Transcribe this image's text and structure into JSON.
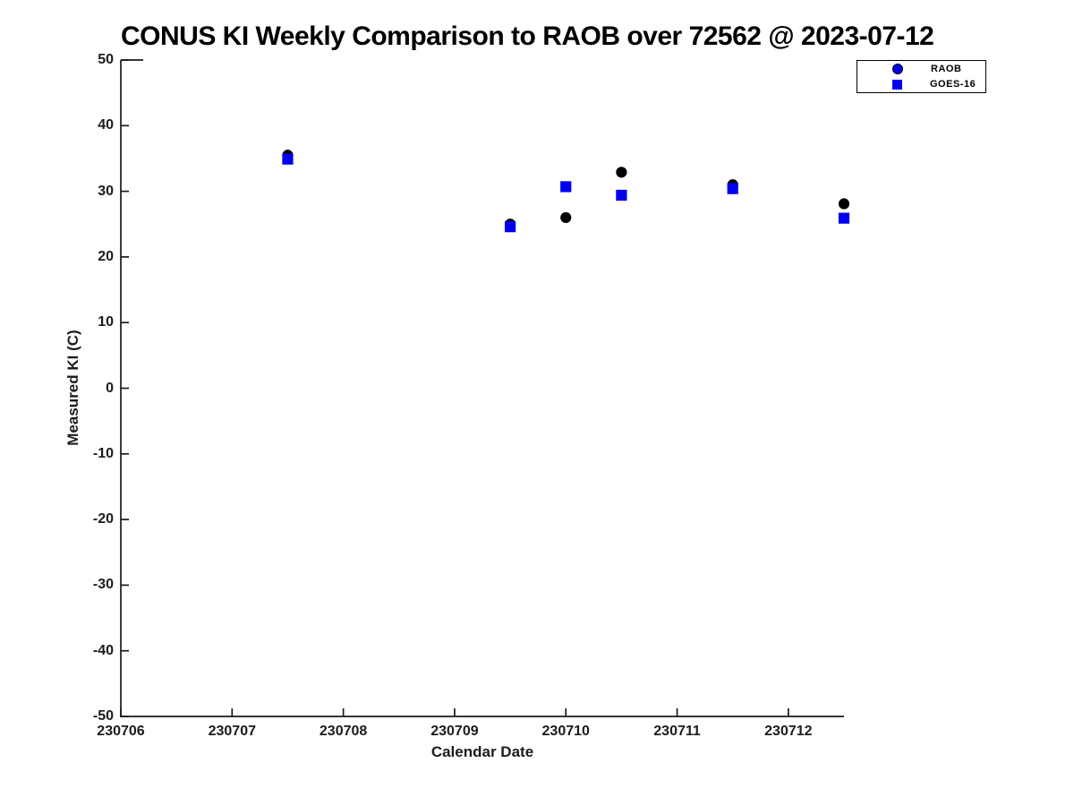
{
  "title": "CONUS KI Weekly Comparison to RAOB over 72562 @ 2023-07-12",
  "colors": {
    "series_blue": "#0000ee",
    "series_black": "#000000",
    "axis": "#1a1a1a",
    "tick_text": "#1c1c1c",
    "background": "#ffffff"
  },
  "legend": {
    "items": [
      {
        "label": "RAOB",
        "marker": "circle"
      },
      {
        "label": "GOES-16",
        "marker": "square"
      }
    ]
  },
  "chart_data": {
    "type": "scatter",
    "title": "CONUS KI Weekly Comparison to RAOB over 72562 @ 2023-07-12",
    "xlabel": "Calendar Date",
    "ylabel": "Measured KI (C)",
    "x_range": [
      230706,
      230712.5
    ],
    "y_range": [
      -50,
      50
    ],
    "x_tick_labels": [
      "230706",
      "230707",
      "230708",
      "230709",
      "230710",
      "230711",
      "230712"
    ],
    "x_tick_values": [
      230706,
      230707,
      230708,
      230709,
      230710,
      230711,
      230712
    ],
    "y_tick_values": [
      50,
      40,
      30,
      20,
      10,
      0,
      -10,
      -20,
      -30,
      -40,
      -50
    ],
    "grid": false,
    "legend_position": "outside-top-right",
    "series": [
      {
        "name": "RAOB",
        "marker": "circle",
        "plot_color": "#000000",
        "legend_face_color": "#0000ee",
        "edge_color": "#000000",
        "points": [
          {
            "x": 230707.5,
            "y": 35.5
          },
          {
            "x": 230709.5,
            "y": 25.0
          },
          {
            "x": 230710.0,
            "y": 26.0
          },
          {
            "x": 230710.5,
            "y": 32.9
          },
          {
            "x": 230711.5,
            "y": 31.0
          },
          {
            "x": 230712.5,
            "y": 28.1
          }
        ]
      },
      {
        "name": "GOES-16",
        "marker": "square",
        "plot_color": "#0000ee",
        "legend_face_color": "#0000ee",
        "edge_color": "#0000ee",
        "points": [
          {
            "x": 230707.5,
            "y": 34.9
          },
          {
            "x": 230709.5,
            "y": 24.6
          },
          {
            "x": 230710.0,
            "y": 30.7
          },
          {
            "x": 230710.5,
            "y": 29.4
          },
          {
            "x": 230711.5,
            "y": 30.4
          },
          {
            "x": 230712.5,
            "y": 25.9
          }
        ]
      }
    ]
  }
}
